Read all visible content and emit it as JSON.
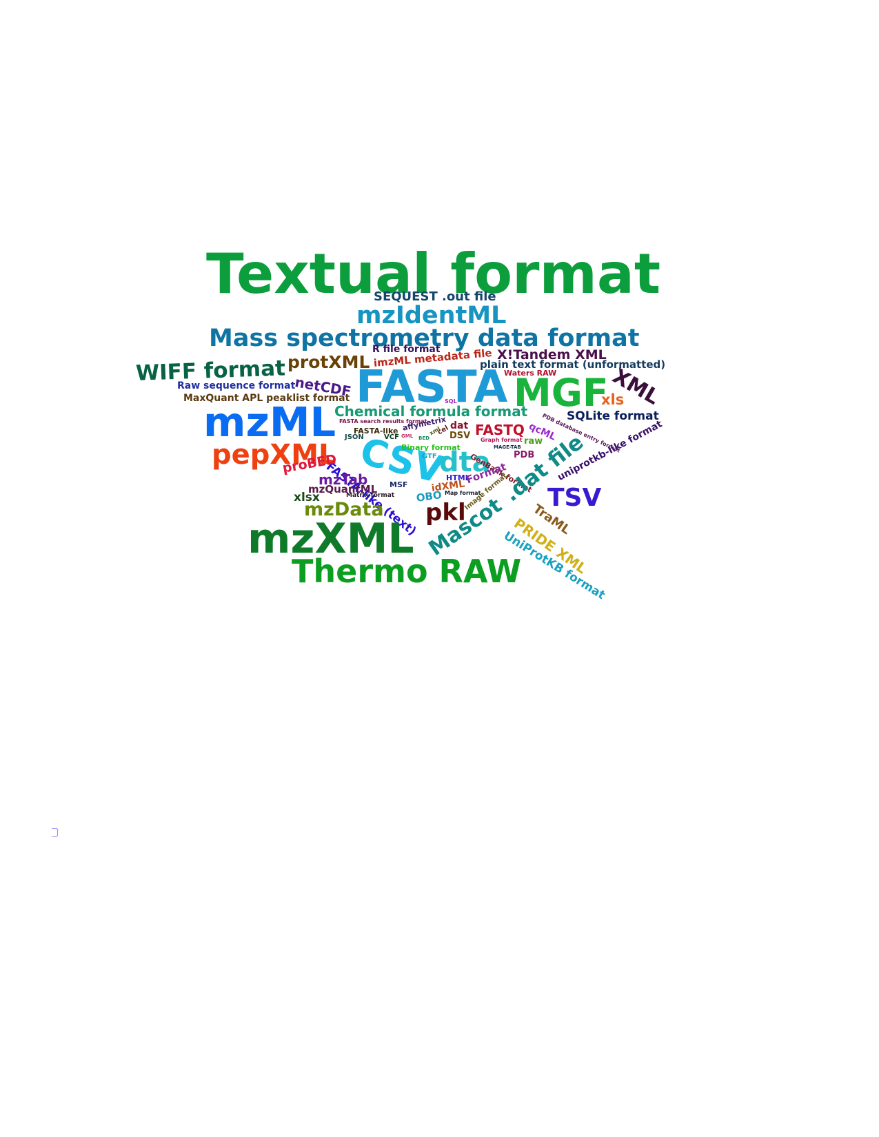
{
  "word_cloud": {
    "words": [
      {
        "text": "Textual format",
        "color": "#0c9e3c"
      },
      {
        "text": "SEQUEST .out file",
        "color": "#13466a"
      },
      {
        "text": "mzIdentML",
        "color": "#1794c2"
      },
      {
        "text": "Mass spectrometry data format",
        "color": "#0f73a3"
      },
      {
        "text": "R file format",
        "color": "#32125a"
      },
      {
        "text": "protXML",
        "color": "#6a4106"
      },
      {
        "text": "imzML metadata file",
        "color": "#b8261a"
      },
      {
        "text": "X!Tandem XML",
        "color": "#4a0f4a"
      },
      {
        "text": "plain text format (unformatted)",
        "color": "#143a5e"
      },
      {
        "text": "Waters RAW",
        "color": "#b01030"
      },
      {
        "text": "WIFF format",
        "color": "#086244"
      },
      {
        "text": "netCDF",
        "color": "#4a1a8a"
      },
      {
        "text": "Raw sequence format",
        "color": "#202fa0"
      },
      {
        "text": "MaxQuant APL peaklist format",
        "color": "#5a3a10"
      },
      {
        "text": "FASTA",
        "color": "#1e9ad6"
      },
      {
        "text": "MGF",
        "color": "#19b43b"
      },
      {
        "text": "XML",
        "color": "#3a0f3a"
      },
      {
        "text": "xls",
        "color": "#e8621c"
      },
      {
        "text": "SQL",
        "color": "#a020c0"
      },
      {
        "text": "mzML",
        "color": "#0a6cf0"
      },
      {
        "text": "Chemical formula format",
        "color": "#179a74"
      },
      {
        "text": "SQLite format",
        "color": "#0b1e5a"
      },
      {
        "text": "FASTA search results format",
        "color": "#7a0f4a"
      },
      {
        "text": "affymetrix",
        "color": "#3a1a6a"
      },
      {
        "text": "dat",
        "color": "#8a0f2a"
      },
      {
        "text": "FASTQ",
        "color": "#c0102a"
      },
      {
        "text": "qcML",
        "color": "#9a2ad0"
      },
      {
        "text": "PDB database entry format",
        "color": "#5a1a5a"
      },
      {
        "text": "FASTA-like",
        "color": "#3a2a0a"
      },
      {
        "text": "JSON",
        "color": "#1a4a4a"
      },
      {
        "text": "VCF",
        "color": "#0a3a1a"
      },
      {
        "text": "GML",
        "color": "#c02a6a"
      },
      {
        "text": "BED",
        "color": "#1a8a5a"
      },
      {
        "text": "xml",
        "color": "#4a4a0a"
      },
      {
        "text": "cel",
        "color": "#6a1a1a"
      },
      {
        "text": "DSV",
        "color": "#6a4a0a"
      },
      {
        "text": "Graph format",
        "color": "#b01a5a"
      },
      {
        "text": "raw",
        "color": "#4aa01a"
      },
      {
        "text": "MAGE-TAB",
        "color": "#1a2a4a"
      },
      {
        "text": "pepXML",
        "color": "#ee4010"
      },
      {
        "text": "FASTA-like (text)",
        "color": "#2a0fd0"
      },
      {
        "text": "CSV",
        "color": "#1cc2e8"
      },
      {
        "text": "Binary format",
        "color": "#2ac01a"
      },
      {
        "text": "GTF",
        "color": "#1aa0c0"
      },
      {
        "text": "dta",
        "color": "#27c0c8"
      },
      {
        "text": "GenBank format",
        "color": "#7a1a2a"
      },
      {
        "text": "PDB",
        "color": "#8a1a6a"
      },
      {
        "text": ".dat file",
        "color": "#0f8a86"
      },
      {
        "text": "uniprotkb-like format",
        "color": "#3a0f6a"
      },
      {
        "text": "proBED",
        "color": "#e0183a"
      },
      {
        "text": "mzTab",
        "color": "#6a1aa0"
      },
      {
        "text": "MSF",
        "color": "#1a2a6a"
      },
      {
        "text": "HTML",
        "color": "#2a1ad0"
      },
      {
        "text": "Format",
        "color": "#8a2aa0"
      },
      {
        "text": "idXML",
        "color": "#c0501a"
      },
      {
        "text": "mzQuantML",
        "color": "#5a1a4a"
      },
      {
        "text": "Matrix format",
        "color": "#2a1a2a"
      },
      {
        "text": "Map format",
        "color": "#1a1a2a"
      },
      {
        "text": "Image format",
        "color": "#6a5a1a"
      },
      {
        "text": "xlsx",
        "color": "#1a4a1a"
      },
      {
        "text": "OBO",
        "color": "#1a9ac0"
      },
      {
        "text": "TSV",
        "color": "#3a1ad0"
      },
      {
        "text": "mzData",
        "color": "#6a8a0a"
      },
      {
        "text": "pkl",
        "color": "#5a0a0a"
      },
      {
        "text": "Mascot",
        "color": "#0f8a86"
      },
      {
        "text": "TraML",
        "color": "#8a5a1a"
      },
      {
        "text": "PRIDE XML",
        "color": "#d0b01a"
      },
      {
        "text": "mzXML",
        "color": "#0f7a2a"
      },
      {
        "text": "UniProtKB format",
        "color": "#1aa0c0"
      },
      {
        "text": "Thermo RAW",
        "color": "#0c9e20"
      }
    ]
  }
}
